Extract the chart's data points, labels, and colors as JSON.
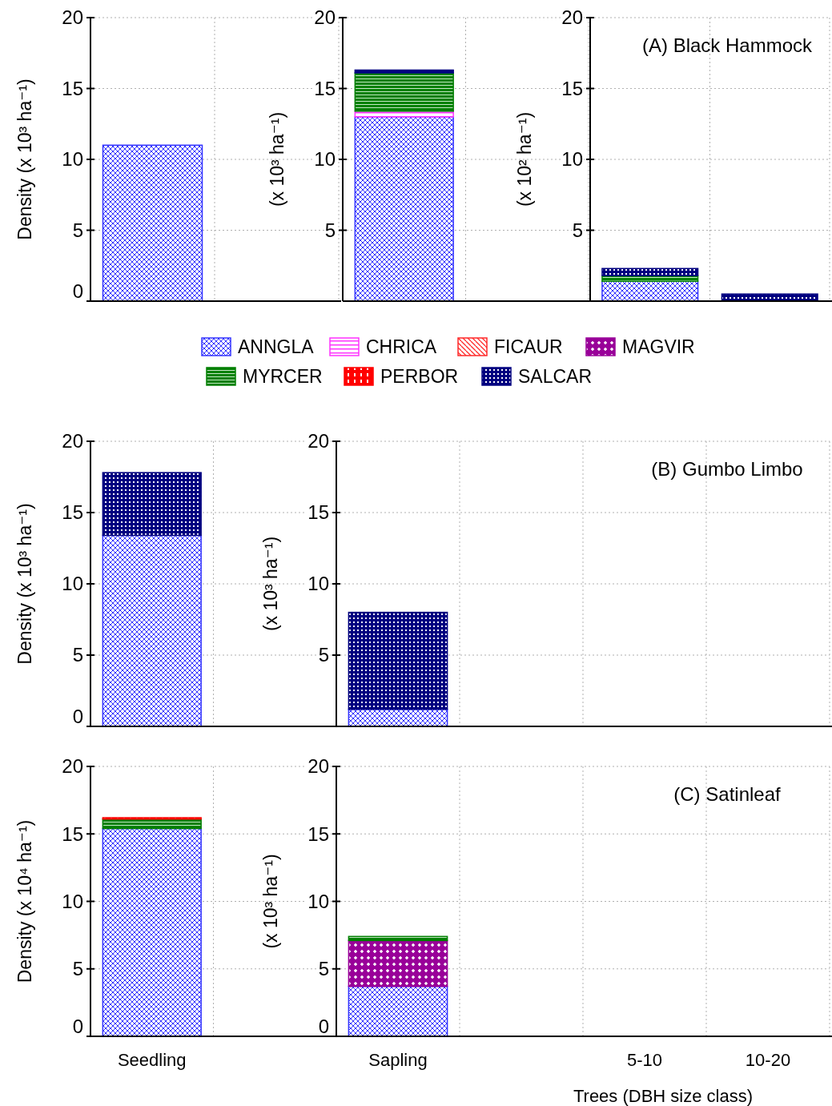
{
  "chart_data": [
    {
      "type": "bar",
      "stacked": true,
      "categories": [
        null,
        null
      ],
      "ylabel": "Density (x 10³ ha⁻¹)",
      "ylim": [
        0,
        20
      ],
      "yticks": [
        0,
        5,
        10,
        15,
        20
      ],
      "grid": true,
      "tick_labels": "y",
      "legend": "bottom",
      "series": [
        {
          "name": "ANNGLA",
          "color": "#3333ff",
          "values": [
            11.0,
            null
          ]
        },
        {
          "name": "CHRICA",
          "color": "#ff33ff",
          "values": [
            null,
            null
          ]
        },
        {
          "name": "FICAUR",
          "color": "#ff2a2a",
          "values": [
            null,
            null
          ]
        },
        {
          "name": "MAGVIR",
          "color": "#990099",
          "values": [
            null,
            null
          ]
        },
        {
          "name": "MYRCER",
          "color": "#008000",
          "values": [
            null,
            null
          ]
        },
        {
          "name": "PERBOR",
          "color": "#ff0000",
          "values": [
            null,
            null
          ]
        },
        {
          "name": "SALCAR",
          "color": "#000080",
          "values": [
            null,
            null
          ]
        }
      ]
    },
    {
      "type": "bar",
      "stacked": true,
      "categories": [
        null,
        null
      ],
      "ylabel": "(x 10³ ha⁻¹)",
      "ylim": [
        0,
        20
      ],
      "yticks": [
        5,
        10,
        15,
        20
      ],
      "grid": true,
      "tick_labels": "y",
      "series": [
        {
          "color": "#3333ff",
          "values": [
            13.0,
            null
          ]
        },
        {
          "color": "#ff33ff",
          "values": [
            0.4,
            null
          ]
        },
        {
          "color": "#ff2a2a",
          "values": [
            null,
            null
          ]
        },
        {
          "color": "#990099",
          "values": [
            null,
            null
          ]
        },
        {
          "color": "#008000",
          "values": [
            2.7,
            null
          ]
        },
        {
          "color": "#ff0000",
          "values": [
            null,
            null
          ]
        },
        {
          "color": "#000080",
          "values": [
            0.2,
            null
          ]
        }
      ]
    },
    {
      "type": "bar",
      "stacked": true,
      "categories": [
        null,
        null
      ],
      "ylabel": "(x 10² ha⁻¹)",
      "ylim": [
        0,
        20
      ],
      "yticks": [
        5,
        10,
        15,
        20
      ],
      "grid": true,
      "tick_labels": "y",
      "annotations": [
        "(A) Black Hammock"
      ],
      "series": [
        {
          "color": "#3333ff",
          "values": [
            1.4,
            null
          ]
        },
        {
          "color": "#ff33ff",
          "values": [
            null,
            null
          ]
        },
        {
          "color": "#ff2a2a",
          "values": [
            null,
            null
          ]
        },
        {
          "color": "#990099",
          "values": [
            null,
            null
          ]
        },
        {
          "color": "#008000",
          "values": [
            0.4,
            null
          ]
        },
        {
          "color": "#ff0000",
          "values": [
            null,
            null
          ]
        },
        {
          "color": "#000080",
          "values": [
            0.5,
            0.5
          ]
        }
      ]
    },
    {
      "type": "bar",
      "stacked": true,
      "categories": [
        null,
        null
      ],
      "ylabel": "Density (x 10³ ha⁻¹)",
      "ylim": [
        0,
        20
      ],
      "yticks": [
        0,
        5,
        10,
        15,
        20
      ],
      "grid": true,
      "tick_labels": "y",
      "series": [
        {
          "color": "#3333ff",
          "values": [
            13.4,
            null
          ]
        },
        {
          "color": "#000080",
          "values": [
            4.4,
            null
          ]
        }
      ]
    },
    {
      "type": "bar",
      "stacked": true,
      "categories": [
        null,
        null,
        null,
        null
      ],
      "ylabel": "(x 10³ ha⁻¹)",
      "ylim": [
        0,
        20
      ],
      "yticks": [
        5,
        10,
        15,
        20
      ],
      "grid": true,
      "tick_labels": "y",
      "annotations": [
        "(B) Gumbo Limbo"
      ],
      "series": [
        {
          "color": "#3333ff",
          "values": [
            1.2,
            null,
            null,
            null
          ]
        },
        {
          "color": "#000080",
          "values": [
            6.8,
            null,
            null,
            null
          ]
        }
      ]
    },
    {
      "type": "bar",
      "stacked": true,
      "categories": [
        "Seedling",
        null
      ],
      "ylabel": "Density (x 10⁴ ha⁻¹)",
      "ylim": [
        0,
        20
      ],
      "yticks": [
        0,
        5,
        10,
        15,
        20
      ],
      "grid": true,
      "series": [
        {
          "color": "#3333ff",
          "values": [
            15.4,
            null
          ]
        },
        {
          "color": "#008000",
          "values": [
            0.7,
            null
          ]
        },
        {
          "color": "#ff0000",
          "values": [
            0.1,
            null
          ]
        }
      ]
    },
    {
      "type": "bar",
      "stacked": true,
      "categories": [
        "Sapling",
        null,
        "5-10",
        "10-20"
      ],
      "ylabel": "(x 10³ ha⁻¹)",
      "xlabel": "Trees (DBH size class)",
      "ylim": [
        0,
        20
      ],
      "yticks": [
        0,
        5,
        10,
        15,
        20
      ],
      "grid": true,
      "annotations": [
        "(C) Satinleaf"
      ],
      "series": [
        {
          "color": "#3333ff",
          "values": [
            3.7,
            null,
            null,
            null
          ]
        },
        {
          "color": "#990099",
          "values": [
            3.4,
            null,
            null,
            null
          ]
        },
        {
          "color": "#008000",
          "values": [
            0.3,
            null,
            null,
            null
          ]
        }
      ]
    }
  ]
}
